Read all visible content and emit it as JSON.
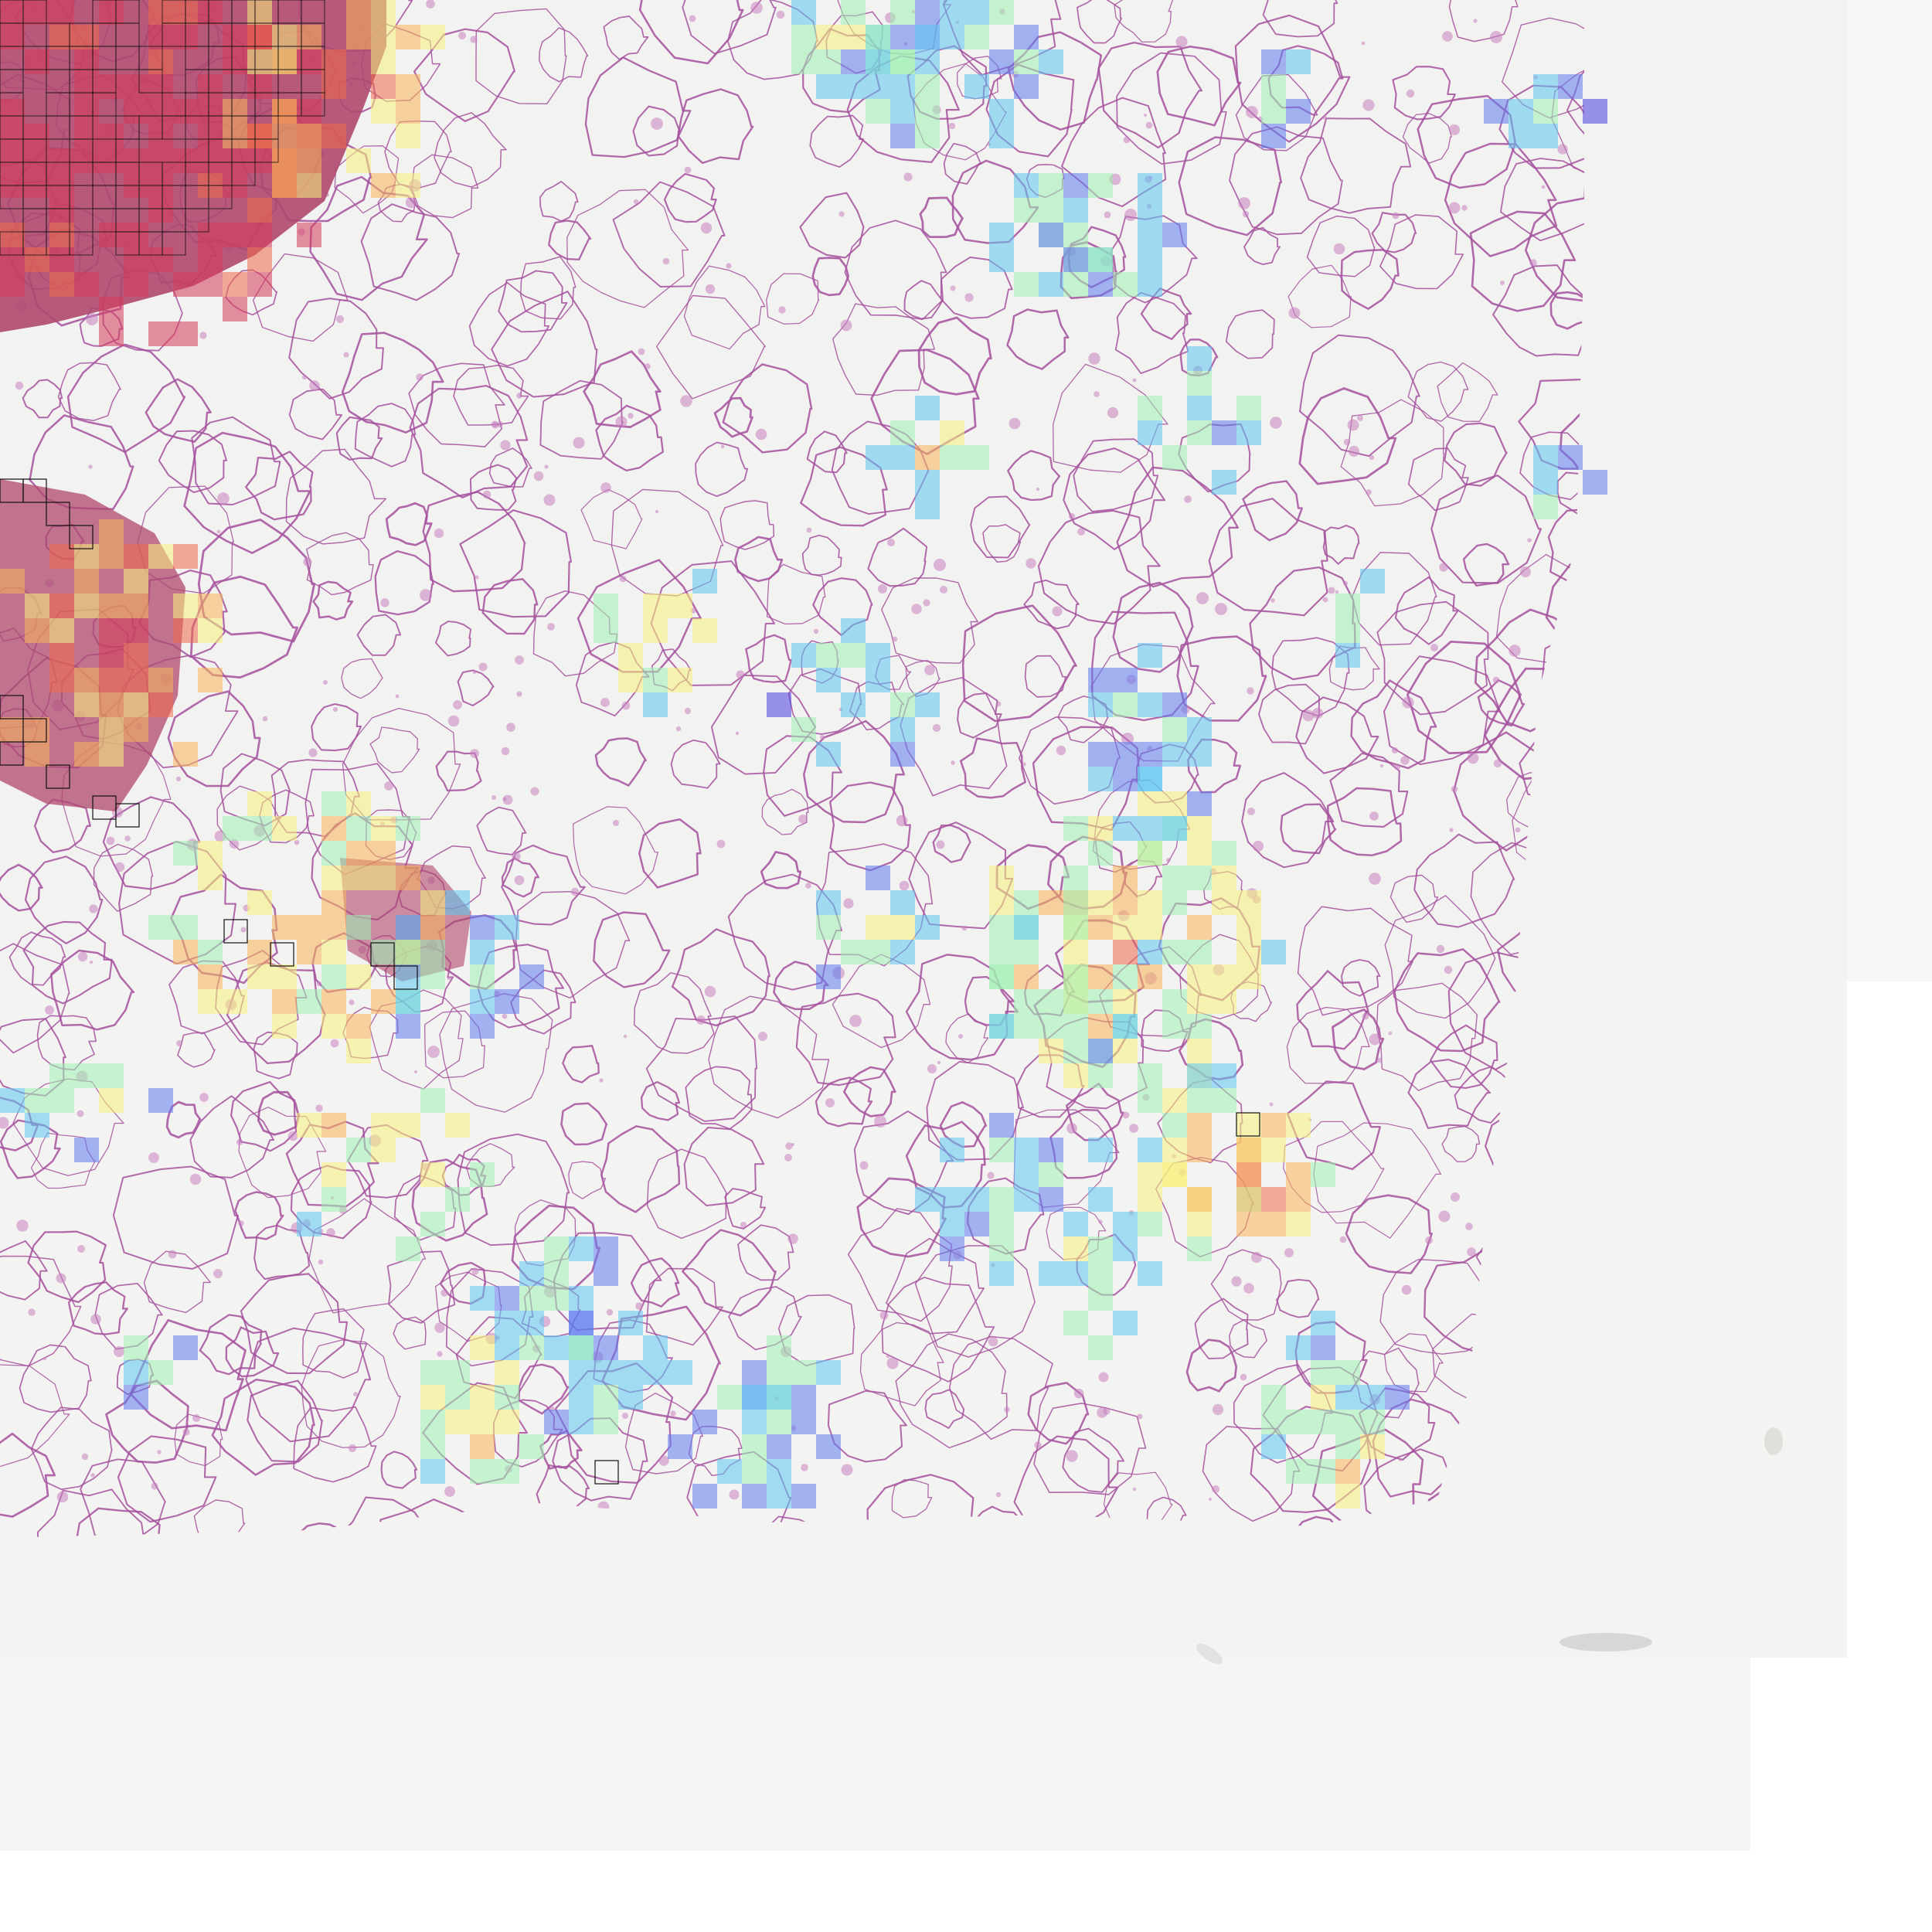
{
  "image": {
    "description_kind": "whole-slide histology tile with attention heatmap overlay",
    "colors": {
      "page_background": "#ffffff",
      "slide_background": "#f2f2f0",
      "scan_lighter": "#f6f6f4",
      "tissue_stroke": "#a4509e",
      "tissue_fill": "#c77fc0",
      "dense_tissue": "#b0486e",
      "high_attention_outline": "#111111"
    },
    "heatmap_palette": [
      "#4b3fe0",
      "#5f7cf0",
      "#5cc6f2",
      "#9ef0b2",
      "#f7f07a",
      "#f8b45a",
      "#f06a4a",
      "#d63a5a"
    ],
    "heatmap_opacity": 0.55
  }
}
